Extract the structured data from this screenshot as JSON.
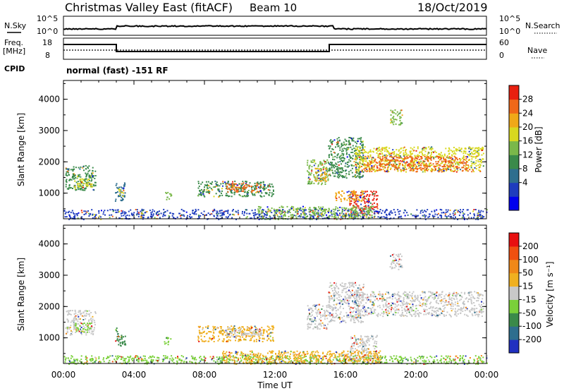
{
  "header": {
    "title": "Christmas Valley East (fitACF)",
    "beam": "Beam 10",
    "date": "18/Oct/2019"
  },
  "status_panels": {
    "nsky_label": "N.Sky",
    "nsky_ticks": [
      "10^5",
      "10^0"
    ],
    "nsearch_label": "N.Search",
    "nsearch_ticks": [
      "10^5",
      "10^0"
    ],
    "freq_label_1": "Freq.",
    "freq_label_2": "[MHz]",
    "freq_ticks": [
      "18",
      "8"
    ],
    "nave_label": "Nave",
    "nave_ticks": [
      "60",
      "0"
    ],
    "cpid_label": "CPID",
    "cpid_text": "normal (fast) -151 RF"
  },
  "chart_data": [
    {
      "type": "heatmap",
      "name": "power",
      "ylabel": "Slant Range [km]",
      "yticks": [
        "4000",
        "3000",
        "2000",
        "1000"
      ],
      "ylim": [
        180,
        4600
      ],
      "colorbar": {
        "label": "Power [dB]",
        "ticks": [
          "28",
          "24",
          "20",
          "16",
          "12",
          "8",
          "4"
        ],
        "colors": [
          "#0000ee",
          "#1e3cbe",
          "#2e6e8e",
          "#3a8a4a",
          "#7ab84a",
          "#d8d820",
          "#f0a818",
          "#f06818",
          "#e82010"
        ]
      },
      "regions": [
        {
          "t0": 0.1,
          "t1": 1.8,
          "r0": 1100,
          "r1": 1900,
          "c": "#3a8a4a"
        },
        {
          "t0": 0.6,
          "t1": 1.6,
          "r0": 1200,
          "r1": 1500,
          "c": "#d8d820"
        },
        {
          "t0": 2.9,
          "t1": 3.5,
          "r0": 750,
          "r1": 1350,
          "c": "#2e6e8e"
        },
        {
          "t0": 3.1,
          "t1": 3.4,
          "r0": 900,
          "r1": 1150,
          "c": "#d8d820"
        },
        {
          "t0": 5.7,
          "t1": 6.1,
          "r0": 800,
          "r1": 1050,
          "c": "#7ab84a"
        },
        {
          "t0": 7.6,
          "t1": 11.9,
          "r0": 900,
          "r1": 1400,
          "c": "#3a8a4a"
        },
        {
          "t0": 9.2,
          "t1": 11.2,
          "r0": 1050,
          "r1": 1350,
          "c": "#f06818"
        },
        {
          "t0": 13.8,
          "t1": 15.0,
          "r0": 1300,
          "r1": 2100,
          "c": "#7ab84a"
        },
        {
          "t0": 14.2,
          "t1": 14.9,
          "r0": 1400,
          "r1": 1850,
          "c": "#f0a818"
        },
        {
          "t0": 15.0,
          "t1": 17.0,
          "r0": 1500,
          "r1": 2800,
          "c": "#3a8a4a"
        },
        {
          "t0": 16.2,
          "t1": 17.8,
          "r0": 300,
          "r1": 1100,
          "c": "#e82010"
        },
        {
          "t0": 15.4,
          "t1": 17.0,
          "r0": 750,
          "r1": 1100,
          "c": "#f0a818"
        },
        {
          "t0": 16.5,
          "t1": 23.8,
          "r0": 1700,
          "r1": 2500,
          "c": "#d8d820"
        },
        {
          "t0": 17.0,
          "t1": 23.2,
          "r0": 1700,
          "r1": 2200,
          "c": "#f06818"
        },
        {
          "t0": 18.5,
          "t1": 19.2,
          "r0": 3200,
          "r1": 3700,
          "c": "#7ab84a"
        },
        {
          "t0": 0.0,
          "t1": 24.0,
          "r0": 180,
          "r1": 500,
          "c": "#1e3cbe"
        },
        {
          "t0": 11.0,
          "t1": 17.5,
          "r0": 180,
          "r1": 600,
          "c": "#7ab84a"
        }
      ]
    },
    {
      "type": "heatmap",
      "name": "velocity",
      "xlabel": "Time UT",
      "xticks": [
        "00:00",
        "04:00",
        "08:00",
        "12:00",
        "16:00",
        "20:00",
        "00:00"
      ],
      "ylabel": "Slant Range [km]",
      "yticks": [
        "4000",
        "3000",
        "2000",
        "1000"
      ],
      "ylim": [
        180,
        4600
      ],
      "colorbar": {
        "label": "Velocity [m s⁻¹]",
        "ticks": [
          "200",
          "100",
          "50",
          "15",
          "-15",
          "-50",
          "-100",
          "-200"
        ],
        "colors": [
          "#2030c0",
          "#2e6e8e",
          "#3a8a4a",
          "#7ad03a",
          "#c8c8c8",
          "#f0b020",
          "#f08818",
          "#f05010",
          "#e81010"
        ]
      },
      "regions": [
        {
          "t0": 0.1,
          "t1": 1.8,
          "r0": 1100,
          "r1": 1900,
          "c": "#c8c8c8"
        },
        {
          "t0": 0.6,
          "t1": 1.6,
          "r0": 1200,
          "r1": 1500,
          "c": "#7ad03a"
        },
        {
          "t0": 2.9,
          "t1": 3.5,
          "r0": 750,
          "r1": 1350,
          "c": "#3a8a4a"
        },
        {
          "t0": 5.7,
          "t1": 6.1,
          "r0": 800,
          "r1": 1050,
          "c": "#7ad03a"
        },
        {
          "t0": 7.6,
          "t1": 11.9,
          "r0": 900,
          "r1": 1400,
          "c": "#f0b020"
        },
        {
          "t0": 9.2,
          "t1": 11.2,
          "r0": 1050,
          "r1": 1350,
          "c": "#c8c8c8"
        },
        {
          "t0": 13.8,
          "t1": 15.0,
          "r0": 1300,
          "r1": 2100,
          "c": "#c8c8c8"
        },
        {
          "t0": 15.0,
          "t1": 17.0,
          "r0": 1500,
          "r1": 2800,
          "c": "#c8c8c8"
        },
        {
          "t0": 16.2,
          "t1": 17.8,
          "r0": 300,
          "r1": 1100,
          "c": "#c8c8c8"
        },
        {
          "t0": 16.5,
          "t1": 23.8,
          "r0": 1700,
          "r1": 2500,
          "c": "#c8c8c8"
        },
        {
          "t0": 18.5,
          "t1": 19.2,
          "r0": 3200,
          "r1": 3700,
          "c": "#c8c8c8"
        },
        {
          "t0": 0.0,
          "t1": 24.0,
          "r0": 180,
          "r1": 450,
          "c": "#7ad03a"
        },
        {
          "t0": 9.0,
          "t1": 18.0,
          "r0": 180,
          "r1": 600,
          "c": "#f0b020"
        }
      ]
    }
  ]
}
